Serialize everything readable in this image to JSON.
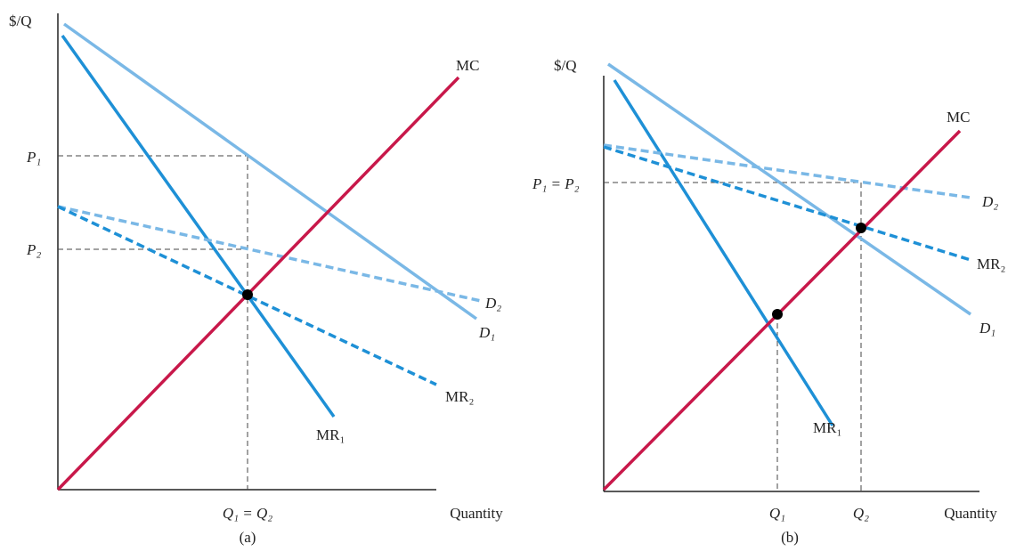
{
  "panels": [
    {
      "y_axis_label": "$/Q",
      "price_labels": [
        "P₁",
        "P₂"
      ],
      "curve_labels": {
        "mc": "MC",
        "d2": "D₂",
        "d1": "D₁",
        "mr2": "MR₂",
        "mr1": "MR₁"
      },
      "quantity_labels": [
        "Q₁ = Q₂"
      ],
      "x_axis_label": "Quantity",
      "caption": "(a)"
    },
    {
      "y_axis_label": "$/Q",
      "price_labels": [
        "P₁ = P₂"
      ],
      "curve_labels": {
        "mc": "MC",
        "d2": "D₂",
        "d1": "D₁",
        "mr2": "MR₂",
        "mr1": "MR₁"
      },
      "quantity_labels": [
        "Q₁",
        "Q₂"
      ],
      "x_axis_label": "Quantity",
      "caption": "(b)"
    }
  ]
}
